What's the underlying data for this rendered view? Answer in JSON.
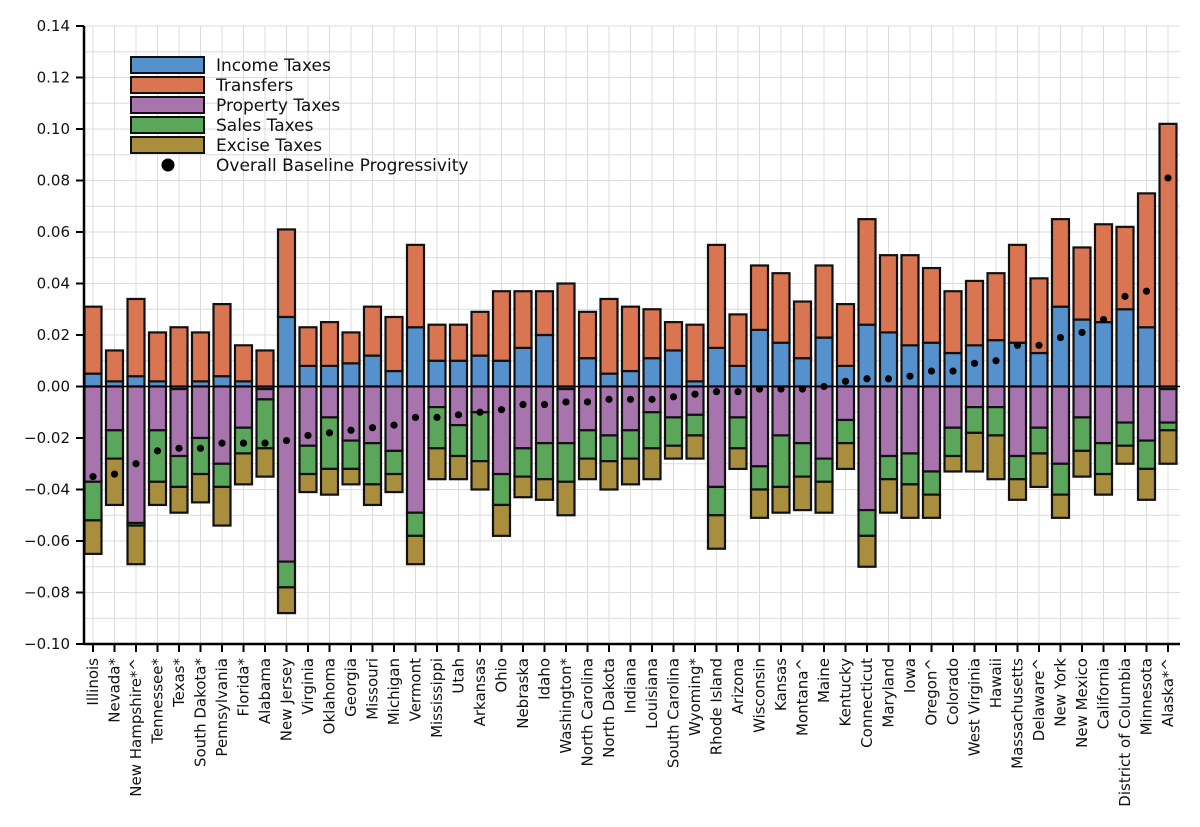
{
  "chart_data": {
    "type": "bar",
    "stacked": true,
    "title": "",
    "xlabel": "",
    "ylabel": "",
    "ylim": [
      -0.1,
      0.14
    ],
    "yticks": [
      -0.1,
      -0.08,
      -0.06,
      -0.04,
      -0.02,
      0.0,
      0.02,
      0.04,
      0.06,
      0.08,
      0.1,
      0.12,
      0.14
    ],
    "ytick_labels": [
      "−0.10",
      "−0.08",
      "−0.06",
      "−0.04",
      "−0.02",
      "0.00",
      "0.02",
      "0.04",
      "0.06",
      "0.08",
      "0.10",
      "0.12",
      "0.14"
    ],
    "grid": true,
    "legend_position": "top-left",
    "categories": [
      "Illinois",
      "Nevada*",
      "New Hampshire*^",
      "Tennessee*",
      "Texas*",
      "South Dakota*",
      "Pennsylvania",
      "Florida*",
      "Alabama",
      "New Jersey",
      "Virginia",
      "Oklahoma",
      "Georgia",
      "Missouri",
      "Michigan",
      "Vermont",
      "Mississippi",
      "Utah",
      "Arkansas",
      "Ohio",
      "Nebraska",
      "Idaho",
      "Washington*",
      "North Carolina",
      "North Dakota",
      "Indiana",
      "Louisiana",
      "South Carolina",
      "Wyoming*",
      "Rhode Island",
      "Arizona",
      "Wisconsin",
      "Kansas",
      "Montana^",
      "Maine",
      "Kentucky",
      "Connecticut",
      "Maryland",
      "Iowa",
      "Oregon^",
      "Colorado",
      "West Virginia",
      "Hawaii",
      "Massachusetts",
      "Delaware^",
      "New York",
      "New Mexico",
      "California",
      "District of Columbia",
      "Minnesota",
      "Alaska*^"
    ],
    "series": [
      {
        "name": "Income Taxes",
        "color": "#5591cc",
        "values": [
          0.005,
          0.002,
          0.004,
          0.002,
          -0.001,
          0.002,
          0.004,
          0.002,
          -0.001,
          0.027,
          0.008,
          0.008,
          0.009,
          0.012,
          0.006,
          0.023,
          0.01,
          0.01,
          0.012,
          0.01,
          0.015,
          0.02,
          -0.001,
          0.011,
          0.005,
          0.006,
          0.011,
          0.014,
          0.002,
          0.015,
          0.008,
          0.022,
          0.017,
          0.011,
          0.019,
          0.008,
          0.024,
          0.021,
          0.016,
          0.017,
          0.013,
          0.016,
          0.018,
          0.017,
          0.013,
          0.031,
          0.026,
          0.025,
          0.03,
          0.023,
          -0.001
        ]
      },
      {
        "name": "Transfers",
        "color": "#d97550",
        "values": [
          0.026,
          0.012,
          0.03,
          0.019,
          0.023,
          0.019,
          0.028,
          0.014,
          0.014,
          0.034,
          0.015,
          0.017,
          0.012,
          0.019,
          0.021,
          0.032,
          0.014,
          0.014,
          0.017,
          0.027,
          0.022,
          0.017,
          0.04,
          0.018,
          0.029,
          0.025,
          0.019,
          0.011,
          0.022,
          0.04,
          0.02,
          0.025,
          0.027,
          0.022,
          0.028,
          0.024,
          0.041,
          0.03,
          0.035,
          0.029,
          0.024,
          0.025,
          0.026,
          0.038,
          0.029,
          0.034,
          0.028,
          0.038,
          0.032,
          0.052,
          0.102
        ]
      },
      {
        "name": "Property Taxes",
        "color": "#a874ae",
        "values": [
          -0.037,
          -0.017,
          -0.053,
          -0.017,
          -0.026,
          -0.02,
          -0.03,
          -0.016,
          -0.004,
          -0.068,
          -0.023,
          -0.012,
          -0.021,
          -0.022,
          -0.025,
          -0.049,
          -0.008,
          -0.015,
          -0.01,
          -0.034,
          -0.024,
          -0.022,
          -0.021,
          -0.017,
          -0.019,
          -0.017,
          -0.01,
          -0.012,
          -0.011,
          -0.039,
          -0.012,
          -0.031,
          -0.019,
          -0.022,
          -0.028,
          -0.013,
          -0.048,
          -0.027,
          -0.026,
          -0.033,
          -0.016,
          -0.008,
          -0.008,
          -0.027,
          -0.016,
          -0.03,
          -0.012,
          -0.022,
          -0.014,
          -0.021,
          -0.013
        ]
      },
      {
        "name": "Sales Taxes",
        "color": "#5aa65a",
        "values": [
          -0.015,
          -0.011,
          -0.001,
          -0.02,
          -0.012,
          -0.014,
          -0.009,
          -0.01,
          -0.019,
          -0.01,
          -0.011,
          -0.02,
          -0.011,
          -0.016,
          -0.009,
          -0.009,
          -0.016,
          -0.012,
          -0.019,
          -0.012,
          -0.011,
          -0.014,
          -0.015,
          -0.011,
          -0.01,
          -0.011,
          -0.014,
          -0.011,
          -0.008,
          -0.011,
          -0.012,
          -0.009,
          -0.02,
          -0.013,
          -0.009,
          -0.009,
          -0.01,
          -0.009,
          -0.012,
          -0.009,
          -0.011,
          -0.01,
          -0.011,
          -0.009,
          -0.01,
          -0.012,
          -0.013,
          -0.012,
          -0.009,
          -0.011,
          -0.003
        ]
      },
      {
        "name": "Excise Taxes",
        "color": "#a98e3e",
        "values": [
          -0.013,
          -0.018,
          -0.015,
          -0.009,
          -0.01,
          -0.011,
          -0.015,
          -0.012,
          -0.011,
          -0.01,
          -0.007,
          -0.01,
          -0.006,
          -0.008,
          -0.007,
          -0.011,
          -0.012,
          -0.009,
          -0.011,
          -0.012,
          -0.008,
          -0.008,
          -0.013,
          -0.008,
          -0.011,
          -0.01,
          -0.012,
          -0.005,
          -0.009,
          -0.013,
          -0.008,
          -0.011,
          -0.01,
          -0.013,
          -0.012,
          -0.01,
          -0.012,
          -0.013,
          -0.013,
          -0.009,
          -0.006,
          -0.015,
          -0.017,
          -0.008,
          -0.013,
          -0.009,
          -0.01,
          -0.008,
          -0.007,
          -0.012,
          -0.013
        ]
      }
    ],
    "overall_baseline_progressivity": {
      "name": "Overall Baseline Progressivity",
      "color": "#000000",
      "values": [
        -0.035,
        -0.034,
        -0.03,
        -0.025,
        -0.024,
        -0.024,
        -0.022,
        -0.022,
        -0.022,
        -0.021,
        -0.019,
        -0.018,
        -0.017,
        -0.016,
        -0.015,
        -0.012,
        -0.012,
        -0.011,
        -0.01,
        -0.009,
        -0.007,
        -0.007,
        -0.006,
        -0.006,
        -0.005,
        -0.005,
        -0.005,
        -0.004,
        -0.003,
        -0.002,
        -0.002,
        -0.001,
        -0.001,
        -0.001,
        0.0,
        0.002,
        0.003,
        0.003,
        0.004,
        0.006,
        0.006,
        0.009,
        0.01,
        0.016,
        0.016,
        0.019,
        0.021,
        0.026,
        0.035,
        0.037,
        0.081
      ]
    },
    "legend": [
      "Income Taxes",
      "Transfers",
      "Property Taxes",
      "Sales Taxes",
      "Excise Taxes",
      "Overall Baseline Progressivity"
    ]
  }
}
